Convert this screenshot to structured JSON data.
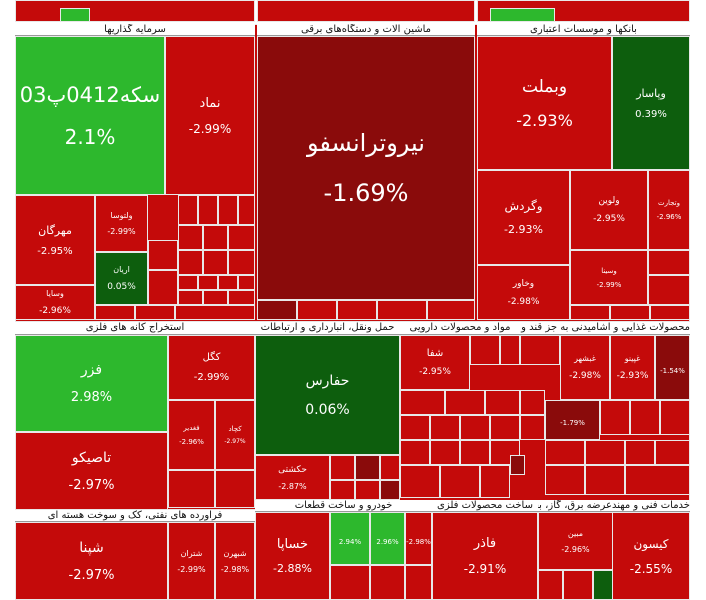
{
  "sectors": [
    {
      "title": "سرمایه گذاریها",
      "tiles": [
        {
          "label": "سکه0412پ03",
          "change": "2.1%"
        },
        {
          "label": "نماد",
          "change": "-2.99%"
        },
        {
          "label": "مهرگان",
          "change": "-2.95%"
        },
        {
          "label": "ولتوسا",
          "change": "-2.99%"
        },
        {
          "label": "اریان",
          "change": "0.05%"
        },
        {
          "label": "وسایا",
          "change": "-2.96%"
        }
      ]
    },
    {
      "title": "ماشین آلات و دستگاه‌های برقی",
      "tiles": [
        {
          "label": "نیروترانسفو",
          "change": "-1.69%"
        }
      ]
    },
    {
      "title": "بانکها و موسسات اعتباری",
      "tiles": [
        {
          "label": "وبملت",
          "change": "-2.93%"
        },
        {
          "label": "وپاسار",
          "change": "0.39%"
        },
        {
          "label": "وگردش",
          "change": "-2.93%"
        },
        {
          "label": "ولوین",
          "change": "-2.95%"
        },
        {
          "label": "وتجارت",
          "change": "-2.96%"
        },
        {
          "label": "وخاور",
          "change": "-2.98%"
        },
        {
          "label": "وسینا",
          "change": "-2.99%"
        }
      ]
    },
    {
      "title": "استخراج کانه های فلزی",
      "tiles": [
        {
          "label": "فزر",
          "change": "2.98%"
        },
        {
          "label": "کگل",
          "change": "-2.99%"
        },
        {
          "label": "تاصیکو",
          "change": "-2.97%"
        },
        {
          "label": "فغدیر",
          "change": "-2.96%"
        },
        {
          "label": "کچاد",
          "change": "-2.97%"
        }
      ]
    },
    {
      "title": "حمل ونقل، انبارداری و ارتباطات",
      "tiles": [
        {
          "label": "حفارس",
          "change": "0.06%"
        },
        {
          "label": "حکشتی",
          "change": "-2.87%"
        }
      ]
    },
    {
      "title": "مواد و محصولات دارویی",
      "tiles": [
        {
          "label": "شفا",
          "change": "-2.95%"
        }
      ]
    },
    {
      "title": "محصولات غذایی و آشامیدنی به جز قند و شکر",
      "tiles": [
        {
          "label": "غبشهر",
          "change": "-2.98%"
        },
        {
          "label": "غپینو",
          "change": "-2.93%"
        },
        {
          "change": "-1.54%"
        },
        {
          "change": "-1.79%"
        }
      ]
    },
    {
      "title": "فراورده های نفتی، کک و سوخت هسته ای",
      "tiles": [
        {
          "label": "شپنا",
          "change": "-2.97%"
        },
        {
          "label": "شتران",
          "change": "-2.99%"
        },
        {
          "label": "شبهرن",
          "change": "-2.98%"
        }
      ]
    },
    {
      "title": "خودرو و ساخت قطعات",
      "tiles": [
        {
          "label": "خساپا",
          "change": "-2.88%"
        },
        {
          "change": "2.94%"
        },
        {
          "change": "2.96%"
        },
        {
          "change": "-2.98%"
        }
      ]
    },
    {
      "title": "ساخت محصولات فلزی",
      "tiles": [
        {
          "label": "فاذر",
          "change": "-2.91%"
        }
      ]
    },
    {
      "title": "عرضه برق، گاز، بخار و آب گرم",
      "tiles": [
        {
          "label": "مبین",
          "change": "-2.96%"
        }
      ]
    },
    {
      "title": "خدمات فنی و مهندسی",
      "tiles": [
        {
          "label": "کیسون",
          "change": "-2.55%"
        }
      ]
    }
  ]
}
